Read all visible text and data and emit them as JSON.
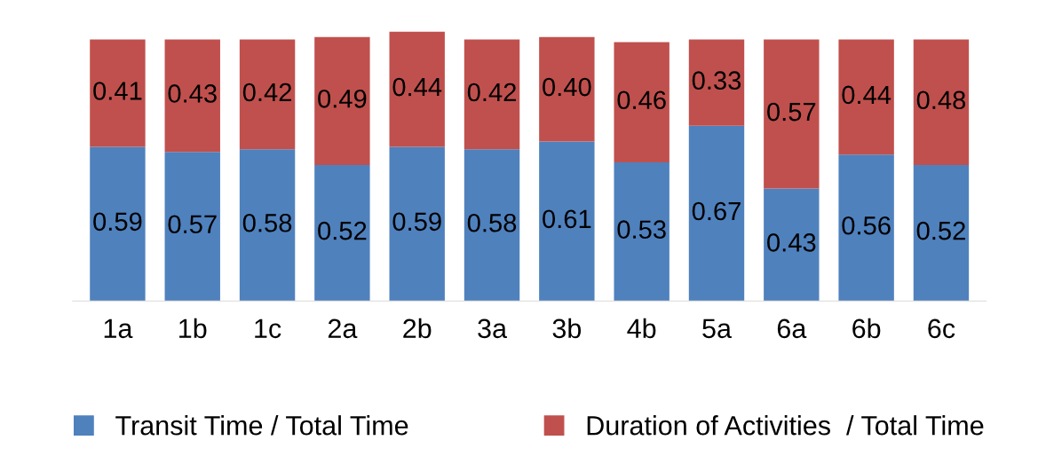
{
  "chart_data": {
    "type": "bar",
    "stacked": true,
    "legend": "bottom",
    "categories": [
      "1a",
      "1b",
      "1c",
      "2a",
      "2b",
      "3a",
      "3b",
      "4b",
      "5a",
      "6a",
      "6b",
      "6c"
    ],
    "series": [
      {
        "name": "Transit Time / Total Time",
        "color": "#4f81bd",
        "values": [
          0.59,
          0.57,
          0.58,
          0.52,
          0.59,
          0.58,
          0.61,
          0.53,
          0.67,
          0.43,
          0.56,
          0.52
        ],
        "value_labels": [
          "0.59",
          "0.57",
          "0.58",
          "0.52",
          "0.59",
          "0.58",
          "0.61",
          "0.53",
          "0.67",
          "0.43",
          "0.56",
          "0.52"
        ]
      },
      {
        "name": "Duration of Activities  / Total Time",
        "color": "#c0504d",
        "values": [
          0.41,
          0.43,
          0.42,
          0.49,
          0.44,
          0.42,
          0.4,
          0.46,
          0.33,
          0.57,
          0.44,
          0.48
        ],
        "value_labels": [
          "0.41",
          "0.43",
          "0.42",
          "0.49",
          "0.44",
          "0.42",
          "0.40",
          "0.46",
          "0.33",
          "0.57",
          "0.44",
          "0.48"
        ]
      }
    ]
  }
}
